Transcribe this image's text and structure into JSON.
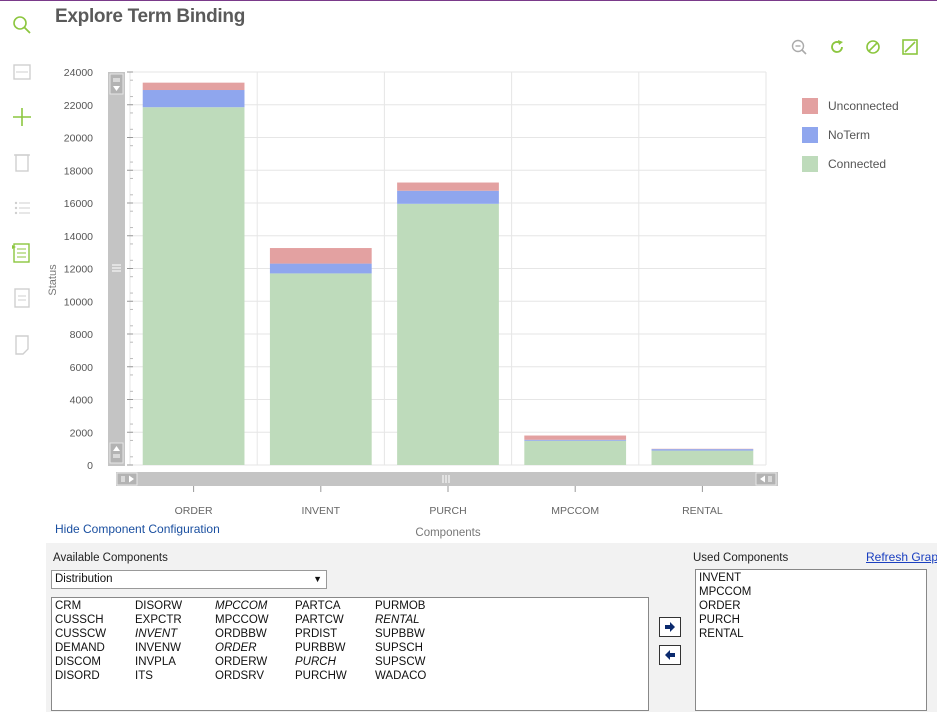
{
  "page": {
    "title": "Explore Term Binding"
  },
  "sidebar": {
    "icons": [
      "search-icon",
      "window-icon",
      "add-icon",
      "delete-icon",
      "list-icon",
      "details-icon",
      "report-icon",
      "note-icon"
    ]
  },
  "toolbar": {
    "icons": [
      "zoom-out-icon",
      "refresh-icon",
      "reset-icon",
      "chart-settings-icon"
    ]
  },
  "colors": {
    "accent": "#8cc63f",
    "disabled": "#cfcfcf",
    "unconnected": "#e3a1a1",
    "noterm": "#8fa6ee",
    "connected": "#bedbbb"
  },
  "chart_data": {
    "type": "bar",
    "stacked": true,
    "categories": [
      "ORDER",
      "INVENT",
      "PURCH",
      "MPCCOM",
      "RENTAL"
    ],
    "series": [
      {
        "name": "Connected",
        "color": "#bedbbb",
        "values": [
          21850,
          11700,
          15950,
          1480,
          880
        ]
      },
      {
        "name": "NoTerm",
        "color": "#8fa6ee",
        "values": [
          1050,
          600,
          800,
          60,
          90
        ]
      },
      {
        "name": "Unconnected",
        "color": "#e3a1a1",
        "values": [
          450,
          950,
          500,
          260,
          20
        ]
      }
    ],
    "legend": [
      "Unconnected",
      "NoTerm",
      "Connected"
    ],
    "legend_position": "right",
    "xlabel": "Components",
    "ylabel": "Status",
    "ylim": [
      0,
      24000
    ],
    "yticks": [
      "0",
      "2000",
      "4000",
      "6000",
      "8000",
      "10000",
      "12000",
      "14000",
      "16000",
      "18000",
      "20000",
      "22000",
      "24000"
    ],
    "grid": true
  },
  "config": {
    "hide_link": "Hide Component Configuration",
    "available_label": "Available Components",
    "used_label": "Used Components",
    "refresh_label": "Refresh Graph",
    "category_value": "Distribution",
    "available_columns": [
      [
        {
          "name": "CRM",
          "used": false
        },
        {
          "name": "CUSSCH",
          "used": false
        },
        {
          "name": "CUSSCW",
          "used": false
        },
        {
          "name": "DEMAND",
          "used": false
        },
        {
          "name": "DISCOM",
          "used": false
        },
        {
          "name": "DISORD",
          "used": false
        }
      ],
      [
        {
          "name": "DISORW",
          "used": false
        },
        {
          "name": "EXPCTR",
          "used": false
        },
        {
          "name": "INVENT",
          "used": true
        },
        {
          "name": "INVENW",
          "used": false
        },
        {
          "name": "INVPLA",
          "used": false
        },
        {
          "name": "ITS",
          "used": false
        }
      ],
      [
        {
          "name": "MPCCOM",
          "used": true
        },
        {
          "name": "MPCCOW",
          "used": false
        },
        {
          "name": "ORDBBW",
          "used": false
        },
        {
          "name": "ORDER",
          "used": true
        },
        {
          "name": "ORDERW",
          "used": false
        },
        {
          "name": "ORDSRV",
          "used": false
        }
      ],
      [
        {
          "name": "PARTCA",
          "used": false
        },
        {
          "name": "PARTCW",
          "used": false
        },
        {
          "name": "PRDIST",
          "used": false
        },
        {
          "name": "PURBBW",
          "used": false
        },
        {
          "name": "PURCH",
          "used": true
        },
        {
          "name": "PURCHW",
          "used": false
        }
      ],
      [
        {
          "name": "PURMOB",
          "used": false
        },
        {
          "name": "RENTAL",
          "used": true
        },
        {
          "name": "SUPBBW",
          "used": false
        },
        {
          "name": "SUPSCH",
          "used": false
        },
        {
          "name": "SUPSCW",
          "used": false
        },
        {
          "name": "WADACO",
          "used": false
        }
      ]
    ],
    "used_components": [
      "INVENT",
      "MPCCOM",
      "ORDER",
      "PURCH",
      "RENTAL"
    ],
    "move_buttons": [
      "arrow-right-icon",
      "arrow-left-icon"
    ]
  }
}
